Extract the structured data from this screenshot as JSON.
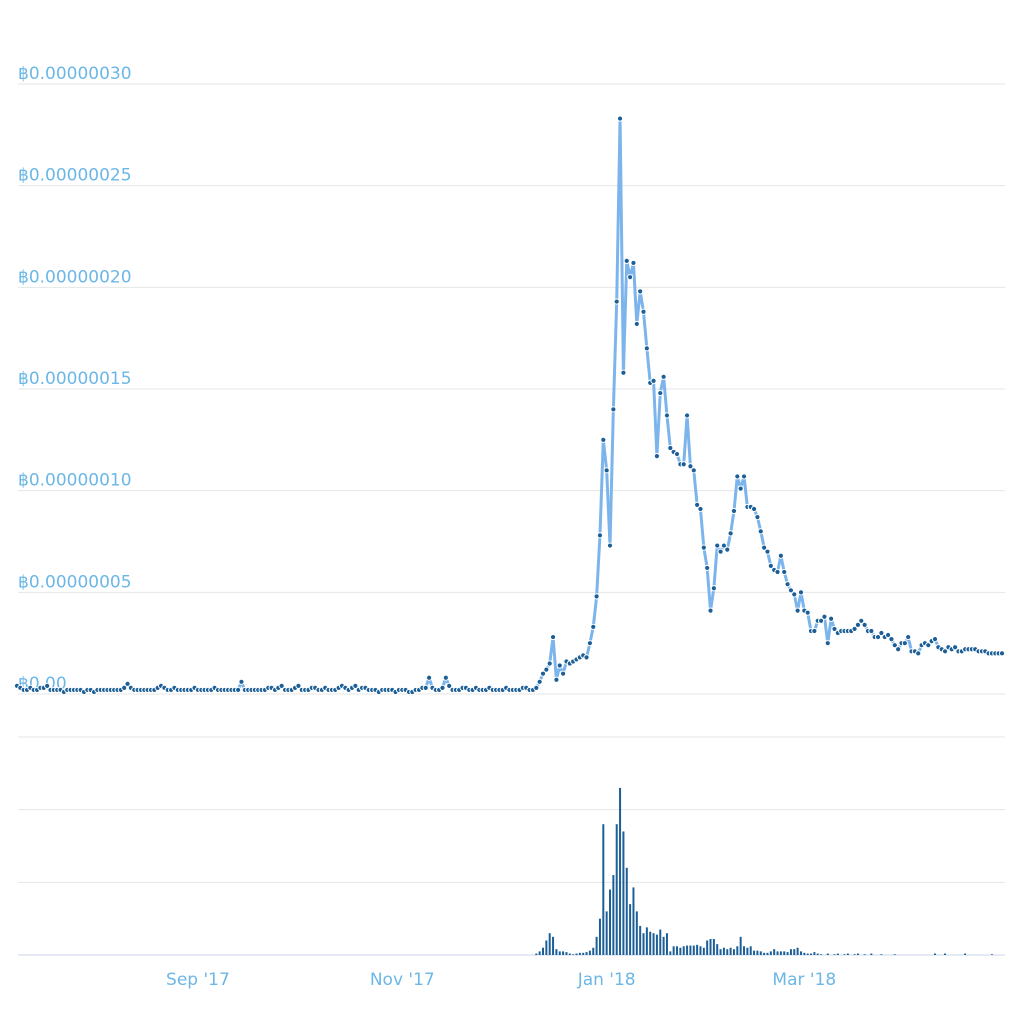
{
  "chart_data": [
    {
      "type": "line",
      "color": "#7cb5ec",
      "marker_color": "#1c5f97",
      "ylim": [
        0,
        3e-07
      ],
      "yticks": [
        {
          "value": 0,
          "label": "฿0.00"
        },
        {
          "value": 5e-08,
          "label": "฿0.00000005"
        },
        {
          "value": 1e-07,
          "label": "฿0.00000010"
        },
        {
          "value": 1.5e-07,
          "label": "฿0.00000015"
        },
        {
          "value": 2e-07,
          "label": "฿0.00000020"
        },
        {
          "value": 2.5e-07,
          "label": "฿0.00000025"
        },
        {
          "value": 3e-07,
          "label": "฿0.00000030"
        }
      ],
      "grid": true,
      "values": [
        4e-09,
        3e-09,
        2e-09,
        2e-09,
        3e-09,
        2e-09,
        2e-09,
        3e-09,
        3e-09,
        4e-09,
        2e-09,
        2e-09,
        2e-09,
        2e-09,
        1e-09,
        2e-09,
        2e-09,
        2e-09,
        2e-09,
        2e-09,
        1e-09,
        2e-09,
        2e-09,
        1e-09,
        2e-09,
        2e-09,
        2e-09,
        2e-09,
        2e-09,
        2e-09,
        2e-09,
        2e-09,
        3e-09,
        5e-09,
        3e-09,
        2e-09,
        2e-09,
        2e-09,
        2e-09,
        2e-09,
        2e-09,
        2e-09,
        3e-09,
        4e-09,
        3e-09,
        2e-09,
        2e-09,
        3e-09,
        2e-09,
        2e-09,
        2e-09,
        2e-09,
        2e-09,
        3e-09,
        2e-09,
        2e-09,
        2e-09,
        2e-09,
        2e-09,
        3e-09,
        2e-09,
        2e-09,
        2e-09,
        2e-09,
        2e-09,
        2e-09,
        2e-09,
        6e-09,
        2e-09,
        2e-09,
        2e-09,
        2e-09,
        2e-09,
        2e-09,
        2e-09,
        3e-09,
        3e-09,
        2e-09,
        3e-09,
        4e-09,
        2e-09,
        2e-09,
        2e-09,
        3e-09,
        4e-09,
        2e-09,
        2e-09,
        2e-09,
        3e-09,
        3e-09,
        2e-09,
        2e-09,
        3e-09,
        2e-09,
        2e-09,
        2e-09,
        3e-09,
        4e-09,
        3e-09,
        2e-09,
        3e-09,
        4e-09,
        2e-09,
        3e-09,
        3e-09,
        2e-09,
        2e-09,
        2e-09,
        1e-09,
        2e-09,
        2e-09,
        2e-09,
        2e-09,
        1e-09,
        2e-09,
        2e-09,
        2e-09,
        1e-09,
        1e-09,
        2e-09,
        2e-09,
        3e-09,
        3e-09,
        8e-09,
        3e-09,
        2e-09,
        2e-09,
        3e-09,
        8e-09,
        4e-09,
        2e-09,
        2e-09,
        2e-09,
        3e-09,
        3e-09,
        2e-09,
        2e-09,
        3e-09,
        2e-09,
        2e-09,
        2e-09,
        3e-09,
        2e-09,
        2e-09,
        2e-09,
        2e-09,
        3e-09,
        2e-09,
        2e-09,
        2e-09,
        2e-09,
        3e-09,
        3e-09,
        2e-09,
        2e-09,
        3e-09,
        6e-09,
        1e-08,
        1.2e-08,
        1.5e-08,
        2.8e-08,
        7e-09,
        1.4e-08,
        1e-08,
        1.6e-08,
        1.5e-08,
        1.6e-08,
        1.7e-08,
        1.8e-08,
        1.9e-08,
        1.8e-08,
        2.5e-08,
        3.3e-08,
        4.8e-08,
        7.8e-08,
        1.25e-07,
        1.1e-07,
        7.3e-08,
        1.4e-07,
        1.93e-07,
        2.83e-07,
        1.58e-07,
        2.13e-07,
        2.05e-07,
        2.12e-07,
        1.82e-07,
        1.98e-07,
        1.88e-07,
        1.7e-07,
        1.53e-07,
        1.54e-07,
        1.17e-07,
        1.48e-07,
        1.56e-07,
        1.37e-07,
        1.21e-07,
        1.19e-07,
        1.18e-07,
        1.13e-07,
        1.13e-07,
        1.37e-07,
        1.12e-07,
        1.1e-07,
        9.3e-08,
        9.1e-08,
        7.2e-08,
        6.2e-08,
        4.1e-08,
        5.2e-08,
        7.3e-08,
        7e-08,
        7.3e-08,
        7.1e-08,
        7.9e-08,
        9e-08,
        1.07e-07,
        1.01e-07,
        1.07e-07,
        9.2e-08,
        9.2e-08,
        9.1e-08,
        8.7e-08,
        8e-08,
        7.2e-08,
        7e-08,
        6.3e-08,
        6.1e-08,
        6e-08,
        6.8e-08,
        6e-08,
        5.4e-08,
        5.1e-08,
        4.9e-08,
        4.1e-08,
        5e-08,
        4.1e-08,
        4e-08,
        3.1e-08,
        3.1e-08,
        3.6e-08,
        3.6e-08,
        3.8e-08,
        2.5e-08,
        3.7e-08,
        3.2e-08,
        3e-08,
        3.1e-08,
        3.1e-08,
        3.1e-08,
        3.1e-08,
        3.2e-08,
        3.4e-08,
        3.6e-08,
        3.4e-08,
        3.1e-08,
        3.1e-08,
        2.8e-08,
        2.8e-08,
        3e-08,
        2.8e-08,
        2.9e-08,
        2.7e-08,
        2.4e-08,
        2.2e-08,
        2.5e-08,
        2.5e-08,
        2.8e-08,
        2.1e-08,
        2.1e-08,
        2e-08,
        2.4e-08,
        2.5e-08,
        2.4e-08,
        2.6e-08,
        2.7e-08,
        2.3e-08,
        2.2e-08,
        2.1e-08,
        2.3e-08,
        2.2e-08,
        2.3e-08,
        2.1e-08,
        2.1e-08,
        2.2e-08,
        2.2e-08,
        2.2e-08,
        2.2e-08,
        2.1e-08,
        2.1e-08,
        2.1e-08,
        2e-08,
        2e-08,
        2e-08,
        2e-08,
        2e-08
      ]
    },
    {
      "type": "bar",
      "color": "#1c5f97",
      "ylim": [
        0,
        3
      ],
      "yticks": [
        0,
        1,
        2,
        3
      ],
      "grid": true,
      "categories": [
        null,
        null,
        null,
        null,
        null,
        null,
        null,
        null,
        null,
        null,
        null,
        null,
        null,
        null,
        null,
        null,
        null,
        null,
        null,
        null,
        null,
        null,
        null,
        null,
        null,
        null,
        null,
        null,
        null,
        null,
        null,
        null,
        null,
        null,
        null,
        null,
        null,
        null,
        null,
        null,
        null,
        null,
        null,
        null,
        null,
        null,
        null,
        null,
        null,
        null,
        null,
        null,
        null,
        null,
        "Sep '17",
        null,
        null,
        null,
        null,
        null,
        null,
        null,
        null,
        null,
        null,
        null,
        null,
        null,
        null,
        null,
        null,
        null,
        null,
        null,
        null,
        null,
        null,
        null,
        null,
        null,
        null,
        null,
        null,
        null,
        null,
        null,
        null,
        null,
        null,
        null,
        null,
        null,
        null,
        null,
        null,
        null,
        null,
        null,
        null,
        null,
        null,
        null,
        null,
        null,
        null,
        null,
        null,
        null,
        null,
        null,
        null,
        null,
        null,
        null,
        null,
        "Nov '17",
        null,
        null,
        null,
        null,
        null,
        null,
        null,
        null,
        null,
        null,
        null,
        null,
        null,
        null,
        null,
        null,
        null,
        null,
        null,
        null,
        null,
        null,
        null,
        null,
        null,
        null,
        null,
        null,
        null,
        null,
        null,
        null,
        null,
        null,
        null,
        null,
        null,
        null,
        null,
        null,
        null,
        null,
        null,
        null,
        null,
        null,
        null,
        null,
        null,
        null,
        null,
        null,
        null,
        null,
        null,
        null,
        null,
        null,
        null,
        null,
        "Jan '18",
        null,
        null,
        null,
        null,
        null,
        null,
        null,
        null,
        null,
        null,
        null,
        null,
        null,
        null,
        null,
        null,
        null,
        null,
        null,
        null,
        null,
        null,
        null,
        null,
        null,
        null,
        null,
        null,
        null,
        null,
        null,
        null,
        null,
        null,
        null,
        null,
        null,
        null,
        null,
        null,
        null,
        null,
        null,
        null,
        null,
        null,
        null,
        null,
        null,
        null,
        null,
        null,
        null,
        null,
        null,
        null,
        null,
        null,
        "Mar '18",
        null,
        null,
        null,
        null,
        null,
        null,
        null,
        null,
        null,
        null,
        null,
        null,
        null,
        null,
        null,
        null,
        null,
        null,
        null,
        null,
        null,
        null,
        null,
        null,
        null,
        null,
        null,
        null,
        null,
        null,
        null,
        null,
        null,
        null,
        null,
        null,
        null,
        null,
        null,
        null,
        null,
        null,
        null,
        null,
        null,
        null,
        null,
        null,
        null,
        null,
        null,
        null,
        null,
        null,
        null,
        null,
        null,
        null,
        null
      ],
      "values": [
        0,
        0,
        0,
        0,
        0,
        0,
        0,
        0,
        0,
        0,
        0,
        0,
        0,
        0,
        0,
        0,
        0,
        0,
        0,
        0,
        0,
        0,
        0,
        0,
        0,
        0,
        0,
        0,
        0,
        0,
        0,
        0,
        0,
        0,
        0,
        0,
        0,
        0,
        0,
        0,
        0,
        0,
        0,
        0,
        0,
        0,
        0,
        0,
        0,
        0,
        0,
        0,
        0,
        0,
        0,
        0,
        0,
        0,
        0,
        0,
        0,
        0,
        0,
        0,
        0,
        0,
        0,
        0,
        0,
        0,
        0,
        0,
        0,
        0,
        0,
        0,
        0,
        0,
        0,
        0,
        0,
        0,
        0,
        0,
        0,
        0,
        0,
        0,
        0,
        0,
        0,
        0,
        0,
        0,
        0,
        0,
        0,
        0,
        0,
        0,
        0,
        0,
        0,
        0,
        0,
        0,
        0,
        0,
        0,
        0,
        0,
        0,
        0,
        0,
        0,
        0,
        0,
        0,
        0,
        0,
        0,
        0,
        0,
        0,
        0,
        0,
        0,
        0,
        0,
        0,
        0,
        0,
        0,
        0,
        0,
        0,
        0,
        0,
        0,
        0,
        0,
        0,
        0,
        0,
        0,
        0,
        0,
        0,
        0,
        0,
        0,
        0,
        0,
        0,
        0,
        0.02,
        0.05,
        0.1,
        0.2,
        0.3,
        0.25,
        0.08,
        0.05,
        0.05,
        0.04,
        0.02,
        0.01,
        0.02,
        0.03,
        0.03,
        0.04,
        0.06,
        0.1,
        0.25,
        0.5,
        1.8,
        0.6,
        0.9,
        1.1,
        1.8,
        2.3,
        1.7,
        1.2,
        0.7,
        0.93,
        0.6,
        0.4,
        0.3,
        0.38,
        0.32,
        0.3,
        0.28,
        0.35,
        0.25,
        0.3,
        0.05,
        0.12,
        0.12,
        0.1,
        0.12,
        0.13,
        0.13,
        0.13,
        0.14,
        0.12,
        0.1,
        0.2,
        0.22,
        0.22,
        0.15,
        0.08,
        0.1,
        0.08,
        0.1,
        0.08,
        0.12,
        0.25,
        0.12,
        0.1,
        0.12,
        0.06,
        0.06,
        0.05,
        0.03,
        0.03,
        0.05,
        0.08,
        0.05,
        0.05,
        0.05,
        0.04,
        0.08,
        0.08,
        0.1,
        0.05,
        0.03,
        0.02,
        0.02,
        0.04,
        0.02,
        0.01,
        0,
        0.02,
        0,
        0.01,
        0.02,
        0,
        0.01,
        0.02,
        0,
        0.01,
        0.02,
        0,
        0.01,
        0,
        0.02,
        0,
        0,
        0.01,
        0,
        0,
        0,
        0.01,
        0,
        0,
        0,
        0,
        0,
        0,
        0,
        0,
        0,
        0,
        0,
        0.02,
        0,
        0,
        0.02,
        0,
        0,
        0,
        0,
        0,
        0.02,
        0,
        0,
        0,
        0,
        0,
        0,
        0,
        0.01,
        0,
        0,
        0
      ]
    }
  ]
}
